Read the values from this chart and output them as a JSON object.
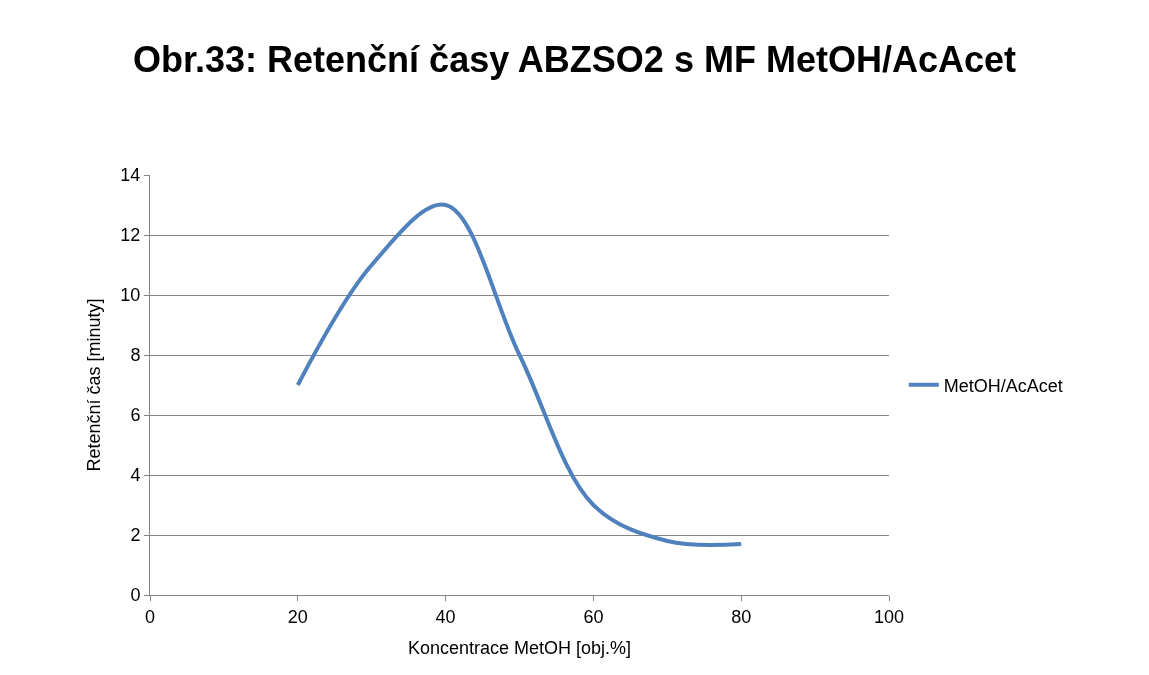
{
  "chart_data": {
    "type": "line",
    "title": "Obr.33: Retenční časy ABZSO2 s MF MetOH/AcAcet",
    "xlabel": "Koncentrace MetOH [obj.%]",
    "ylabel": "Retenční čas [minuty]",
    "x": [
      20,
      30,
      40,
      50,
      60,
      70,
      80
    ],
    "series": [
      {
        "name": "MetOH/AcAcet",
        "color": "#4f81bd",
        "values": [
          7,
          11,
          13,
          8,
          3,
          1.8,
          1.7
        ]
      }
    ],
    "xlim": [
      0,
      100
    ],
    "xticks": [
      0,
      20,
      40,
      60,
      80,
      100
    ],
    "ylim": [
      0,
      14
    ],
    "yticks": [
      0,
      2,
      4,
      6,
      8,
      10,
      12,
      14
    ],
    "grid": "y",
    "legend": "right",
    "marker": "none",
    "line_style": "solid"
  }
}
